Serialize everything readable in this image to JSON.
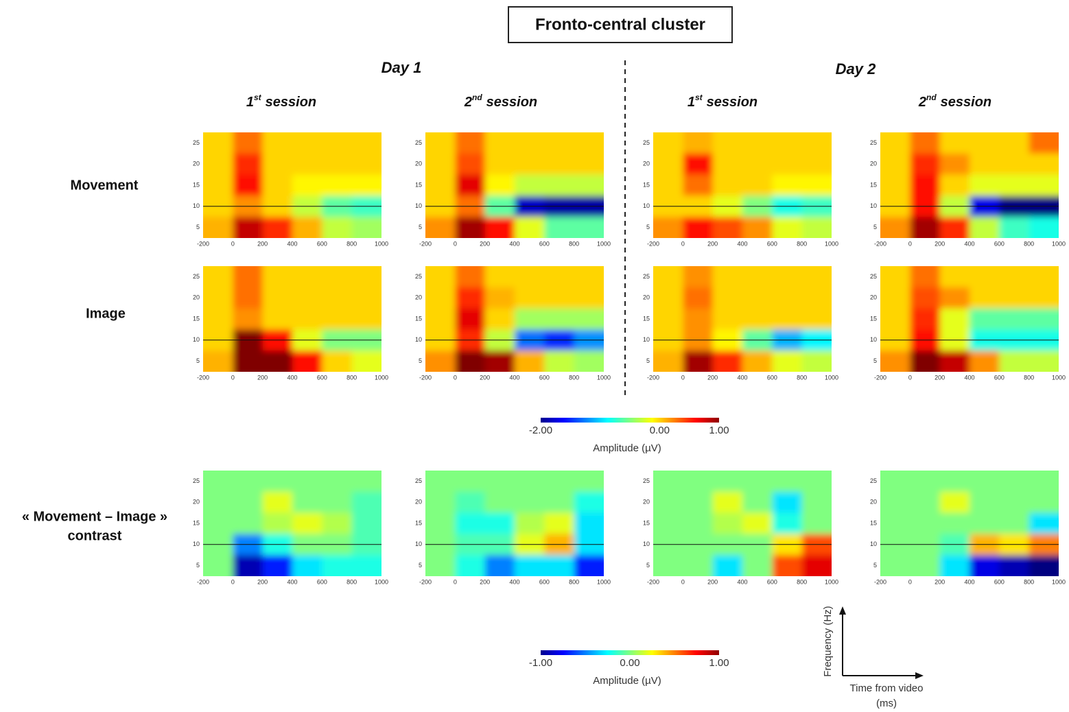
{
  "title": "Fronto-central cluster",
  "days": [
    "Day 1",
    "Day 2"
  ],
  "sessions": [
    {
      "num": "1",
      "sup": "st",
      "word": "session"
    },
    {
      "num": "2",
      "sup": "nd",
      "word": "session"
    },
    {
      "num": "1",
      "sup": "st",
      "word": "session"
    },
    {
      "num": "2",
      "sup": "nd",
      "word": "session"
    }
  ],
  "rows": [
    [
      "Movement"
    ],
    [
      "Image"
    ],
    [
      "« Movement – Image »",
      "contrast"
    ]
  ],
  "colorbars": [
    {
      "label": "Amplitude (µV)",
      "lim": [
        -2,
        1
      ],
      "ticks": [
        {
          "value": -2,
          "label": "-2.00"
        },
        {
          "value": 0,
          "label": "0.00"
        },
        {
          "value": 1,
          "label": "1.00"
        }
      ]
    },
    {
      "label": "Amplitude (µV)",
      "lim": [
        -1,
        1
      ],
      "ticks": [
        {
          "value": -1,
          "label": "-1.00"
        },
        {
          "value": 0,
          "label": "0.00"
        },
        {
          "value": 1,
          "label": "1.00"
        }
      ]
    }
  ],
  "axis_key": {
    "y": "Frequency (Hz)",
    "x": [
      "Time from video",
      "(ms)"
    ]
  },
  "chart_data": [
    {
      "type": "heatmap",
      "x": [
        -100,
        100,
        300,
        500,
        700,
        900
      ],
      "y": [
        25,
        20,
        15,
        10,
        5
      ],
      "xlim": [
        -200,
        1000
      ],
      "ylim": [
        2.5,
        27.5
      ],
      "xticks": [
        -200,
        0,
        200,
        400,
        600,
        800,
        1000
      ],
      "yticks": [
        5,
        10,
        15,
        20,
        25
      ],
      "zlim": [
        -2,
        1
      ],
      "hline": 10,
      "values": [
        [
          0,
          0.3,
          0,
          0,
          0,
          0
        ],
        [
          0,
          0.5,
          0,
          0,
          0,
          0
        ],
        [
          0,
          0.6,
          0,
          -0.1,
          -0.1,
          -0.1
        ],
        [
          0,
          0.2,
          0,
          -0.3,
          -0.6,
          -0.7
        ],
        [
          0.1,
          0.8,
          0.5,
          0.1,
          -0.3,
          -0.4
        ]
      ]
    },
    {
      "type": "heatmap",
      "x": [
        -100,
        100,
        300,
        500,
        700,
        900
      ],
      "y": [
        25,
        20,
        15,
        10,
        5
      ],
      "xlim": [
        -200,
        1000
      ],
      "ylim": [
        2.5,
        27.5
      ],
      "xticks": [
        -200,
        0,
        200,
        400,
        600,
        800,
        1000
      ],
      "yticks": [
        5,
        10,
        15,
        20,
        25
      ],
      "zlim": [
        -2,
        1
      ],
      "hline": 10,
      "values": [
        [
          0,
          0.3,
          0,
          0,
          0,
          0
        ],
        [
          0,
          0.4,
          0,
          0,
          0,
          0
        ],
        [
          0,
          0.7,
          -0.1,
          -0.3,
          -0.3,
          -0.3
        ],
        [
          0,
          0.3,
          -0.6,
          -1.8,
          -1.9,
          -1.9
        ],
        [
          0.2,
          0.9,
          0.6,
          -0.2,
          -0.6,
          -0.6
        ]
      ]
    },
    {
      "type": "heatmap",
      "x": [
        -100,
        100,
        300,
        500,
        700,
        900
      ],
      "y": [
        25,
        20,
        15,
        10,
        5
      ],
      "xlim": [
        -200,
        1000
      ],
      "ylim": [
        2.5,
        27.5
      ],
      "xticks": [
        -200,
        0,
        200,
        400,
        600,
        800,
        1000
      ],
      "yticks": [
        5,
        10,
        15,
        20,
        25
      ],
      "zlim": [
        -2,
        1
      ],
      "hline": 10,
      "values": [
        [
          0,
          0.1,
          0,
          0,
          0,
          0
        ],
        [
          0,
          0.6,
          0,
          0,
          0,
          0
        ],
        [
          0,
          0.3,
          0,
          0,
          -0.1,
          -0.1
        ],
        [
          0,
          0,
          -0.2,
          -0.5,
          -0.8,
          -0.7
        ],
        [
          0.2,
          0.6,
          0.4,
          0.2,
          -0.2,
          -0.3
        ]
      ]
    },
    {
      "type": "heatmap",
      "x": [
        -100,
        100,
        300,
        500,
        700,
        900
      ],
      "y": [
        25,
        20,
        15,
        10,
        5
      ],
      "xlim": [
        -200,
        1000
      ],
      "ylim": [
        2.5,
        27.5
      ],
      "xticks": [
        -200,
        0,
        200,
        400,
        600,
        800,
        1000
      ],
      "yticks": [
        5,
        10,
        15,
        20,
        25
      ],
      "zlim": [
        -2,
        1
      ],
      "hline": 10,
      "values": [
        [
          0,
          0.3,
          0,
          0,
          0,
          0.3
        ],
        [
          0,
          0.5,
          0.2,
          0,
          0,
          0
        ],
        [
          0,
          0.6,
          0,
          -0.2,
          -0.2,
          -0.2
        ],
        [
          0,
          0.6,
          -0.3,
          -1.7,
          -2,
          -2
        ],
        [
          0.2,
          0.9,
          0.5,
          -0.3,
          -0.7,
          -0.8
        ]
      ]
    },
    {
      "type": "heatmap",
      "x": [
        -100,
        100,
        300,
        500,
        700,
        900
      ],
      "y": [
        25,
        20,
        15,
        10,
        5
      ],
      "xlim": [
        -200,
        1000
      ],
      "ylim": [
        2.5,
        27.5
      ],
      "xticks": [
        -200,
        0,
        200,
        400,
        600,
        800,
        1000
      ],
      "yticks": [
        5,
        10,
        15,
        20,
        25
      ],
      "zlim": [
        -2,
        1
      ],
      "hline": 10,
      "values": [
        [
          0,
          0.3,
          0,
          0,
          0,
          0
        ],
        [
          0,
          0.3,
          0,
          0,
          0,
          0
        ],
        [
          0,
          0.2,
          0,
          0,
          0,
          0
        ],
        [
          0,
          1,
          0.6,
          -0.2,
          -0.5,
          -0.5
        ],
        [
          0.1,
          1,
          1,
          0.6,
          0,
          -0.2
        ]
      ]
    },
    {
      "type": "heatmap",
      "x": [
        -100,
        100,
        300,
        500,
        700,
        900
      ],
      "y": [
        25,
        20,
        15,
        10,
        5
      ],
      "xlim": [
        -200,
        1000
      ],
      "ylim": [
        2.5,
        27.5
      ],
      "xticks": [
        -200,
        0,
        200,
        400,
        600,
        800,
        1000
      ],
      "yticks": [
        5,
        10,
        15,
        20,
        25
      ],
      "zlim": [
        -2,
        1
      ],
      "hline": 10,
      "values": [
        [
          0,
          0.3,
          0,
          0,
          0,
          0
        ],
        [
          0,
          0.5,
          0.1,
          0,
          0,
          0
        ],
        [
          0,
          0.7,
          0,
          -0.4,
          -0.4,
          -0.4
        ],
        [
          0,
          0.5,
          -0.3,
          -1.3,
          -1.5,
          -1.2
        ],
        [
          0.2,
          1,
          0.9,
          0.1,
          -0.3,
          -0.4
        ]
      ]
    },
    {
      "type": "heatmap",
      "x": [
        -100,
        100,
        300,
        500,
        700,
        900
      ],
      "y": [
        25,
        20,
        15,
        10,
        5
      ],
      "xlim": [
        -200,
        1000
      ],
      "ylim": [
        2.5,
        27.5
      ],
      "xticks": [
        -200,
        0,
        200,
        400,
        600,
        800,
        1000
      ],
      "yticks": [
        5,
        10,
        15,
        20,
        25
      ],
      "zlim": [
        -2,
        1
      ],
      "hline": 10,
      "values": [
        [
          0,
          0.2,
          0,
          0,
          0,
          0
        ],
        [
          0,
          0.3,
          0,
          0,
          0,
          0
        ],
        [
          0,
          0.2,
          0,
          0,
          0,
          0
        ],
        [
          0,
          0.2,
          -0.1,
          -0.6,
          -1.1,
          -0.9
        ],
        [
          0.1,
          0.9,
          0.5,
          0.1,
          -0.2,
          -0.3
        ]
      ]
    },
    {
      "type": "heatmap",
      "x": [
        -100,
        100,
        300,
        500,
        700,
        900
      ],
      "y": [
        25,
        20,
        15,
        10,
        5
      ],
      "xlim": [
        -200,
        1000
      ],
      "ylim": [
        2.5,
        27.5
      ],
      "xticks": [
        -200,
        0,
        200,
        400,
        600,
        800,
        1000
      ],
      "yticks": [
        5,
        10,
        15,
        20,
        25
      ],
      "zlim": [
        -2,
        1
      ],
      "hline": 10,
      "values": [
        [
          0,
          0.3,
          0,
          0,
          0,
          0
        ],
        [
          0,
          0.4,
          0.2,
          0,
          0,
          0
        ],
        [
          0,
          0.5,
          -0.2,
          -0.6,
          -0.6,
          -0.6
        ],
        [
          0,
          0.6,
          -0.2,
          -0.8,
          -0.8,
          -0.8
        ],
        [
          0.2,
          1,
          0.8,
          0.2,
          -0.3,
          -0.3
        ]
      ]
    },
    {
      "type": "heatmap",
      "x": [
        -100,
        100,
        300,
        500,
        700,
        900
      ],
      "y": [
        25,
        20,
        15,
        10,
        5
      ],
      "xlim": [
        -200,
        1000
      ],
      "ylim": [
        2.5,
        27.5
      ],
      "xticks": [
        -200,
        0,
        200,
        400,
        600,
        800,
        1000
      ],
      "yticks": [
        5,
        10,
        15,
        20,
        25
      ],
      "zlim": [
        -1,
        1
      ],
      "hline": 10,
      "values": [
        [
          0,
          0,
          0,
          0,
          0,
          0
        ],
        [
          0,
          0,
          0.2,
          0,
          0,
          -0.1
        ],
        [
          0,
          0,
          0.1,
          0.2,
          0.1,
          -0.1
        ],
        [
          0,
          -0.5,
          -0.2,
          0,
          0,
          -0.1
        ],
        [
          0,
          -0.9,
          -0.7,
          -0.3,
          -0.2,
          -0.2
        ]
      ]
    },
    {
      "type": "heatmap",
      "x": [
        -100,
        100,
        300,
        500,
        700,
        900
      ],
      "y": [
        25,
        20,
        15,
        10,
        5
      ],
      "xlim": [
        -200,
        1000
      ],
      "ylim": [
        2.5,
        27.5
      ],
      "xticks": [
        -200,
        0,
        200,
        400,
        600,
        800,
        1000
      ],
      "yticks": [
        5,
        10,
        15,
        20,
        25
      ],
      "zlim": [
        -1,
        1
      ],
      "hline": 10,
      "values": [
        [
          0,
          0,
          0,
          0,
          0,
          0
        ],
        [
          0,
          -0.1,
          0,
          0,
          0,
          -0.2
        ],
        [
          0,
          -0.2,
          -0.2,
          0.1,
          0.2,
          -0.3
        ],
        [
          0,
          -0.1,
          -0.1,
          0.2,
          0.4,
          -0.3
        ],
        [
          0,
          -0.2,
          -0.5,
          -0.3,
          -0.3,
          -0.7
        ]
      ]
    },
    {
      "type": "heatmap",
      "x": [
        -100,
        100,
        300,
        500,
        700,
        900
      ],
      "y": [
        25,
        20,
        15,
        10,
        5
      ],
      "xlim": [
        -200,
        1000
      ],
      "ylim": [
        2.5,
        27.5
      ],
      "xticks": [
        -200,
        0,
        200,
        400,
        600,
        800,
        1000
      ],
      "yticks": [
        5,
        10,
        15,
        20,
        25
      ],
      "zlim": [
        -1,
        1
      ],
      "hline": 10,
      "values": [
        [
          0,
          0,
          0,
          0,
          0,
          0
        ],
        [
          0,
          0,
          0.2,
          0,
          -0.3,
          0
        ],
        [
          0,
          0,
          0.1,
          0.2,
          -0.2,
          0
        ],
        [
          0,
          0,
          0,
          0,
          0.3,
          0.6
        ],
        [
          0,
          0,
          -0.3,
          0,
          0.6,
          0.8
        ]
      ]
    },
    {
      "type": "heatmap",
      "x": [
        -100,
        100,
        300,
        500,
        700,
        900
      ],
      "y": [
        25,
        20,
        15,
        10,
        5
      ],
      "xlim": [
        -200,
        1000
      ],
      "ylim": [
        2.5,
        27.5
      ],
      "xticks": [
        -200,
        0,
        200,
        400,
        600,
        800,
        1000
      ],
      "yticks": [
        5,
        10,
        15,
        20,
        25
      ],
      "zlim": [
        -1,
        1
      ],
      "hline": 10,
      "values": [
        [
          0,
          0,
          0,
          0,
          0,
          0
        ],
        [
          0,
          0,
          0.2,
          0,
          0,
          0
        ],
        [
          0,
          0,
          0,
          0,
          0,
          -0.3
        ],
        [
          0,
          0,
          -0.1,
          0.4,
          0.3,
          0.5
        ],
        [
          0,
          0,
          -0.3,
          -0.8,
          -0.9,
          -1
        ]
      ]
    }
  ]
}
